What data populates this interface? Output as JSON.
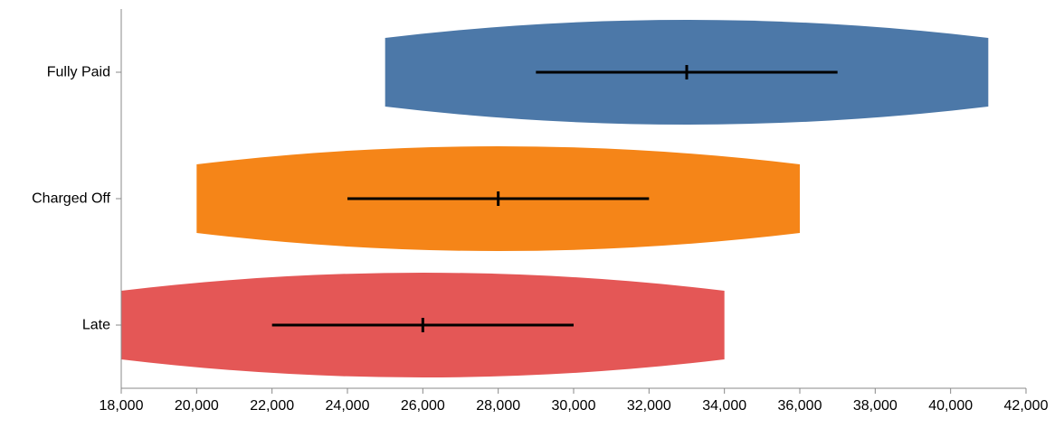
{
  "chart_data": {
    "type": "violin",
    "orientation": "horizontal",
    "title": "",
    "xlabel": "",
    "ylabel": "",
    "xlim": [
      18000,
      42000
    ],
    "x_ticks": [
      18000,
      20000,
      22000,
      24000,
      26000,
      28000,
      30000,
      32000,
      34000,
      36000,
      38000,
      40000,
      42000
    ],
    "x_tick_labels": [
      "18,000",
      "20,000",
      "22,000",
      "24,000",
      "26,000",
      "28,000",
      "30,000",
      "32,000",
      "34,000",
      "36,000",
      "38,000",
      "40,000",
      "42,000"
    ],
    "grid": false,
    "legend": "none",
    "categories": [
      "Fully Paid",
      "Charged Off",
      "Late"
    ],
    "series": [
      {
        "category": "Fully Paid",
        "color": "#4c78a8",
        "min": 25000,
        "max": 41000,
        "q1": 29000,
        "median": 33000,
        "q3": 37000
      },
      {
        "category": "Charged Off",
        "color": "#f58518",
        "min": 20000,
        "max": 36000,
        "q1": 24000,
        "median": 28000,
        "q3": 32000
      },
      {
        "category": "Late",
        "color": "#e45756",
        "min": 18000,
        "max": 34000,
        "q1": 22000,
        "median": 26000,
        "q3": 30000
      }
    ]
  }
}
